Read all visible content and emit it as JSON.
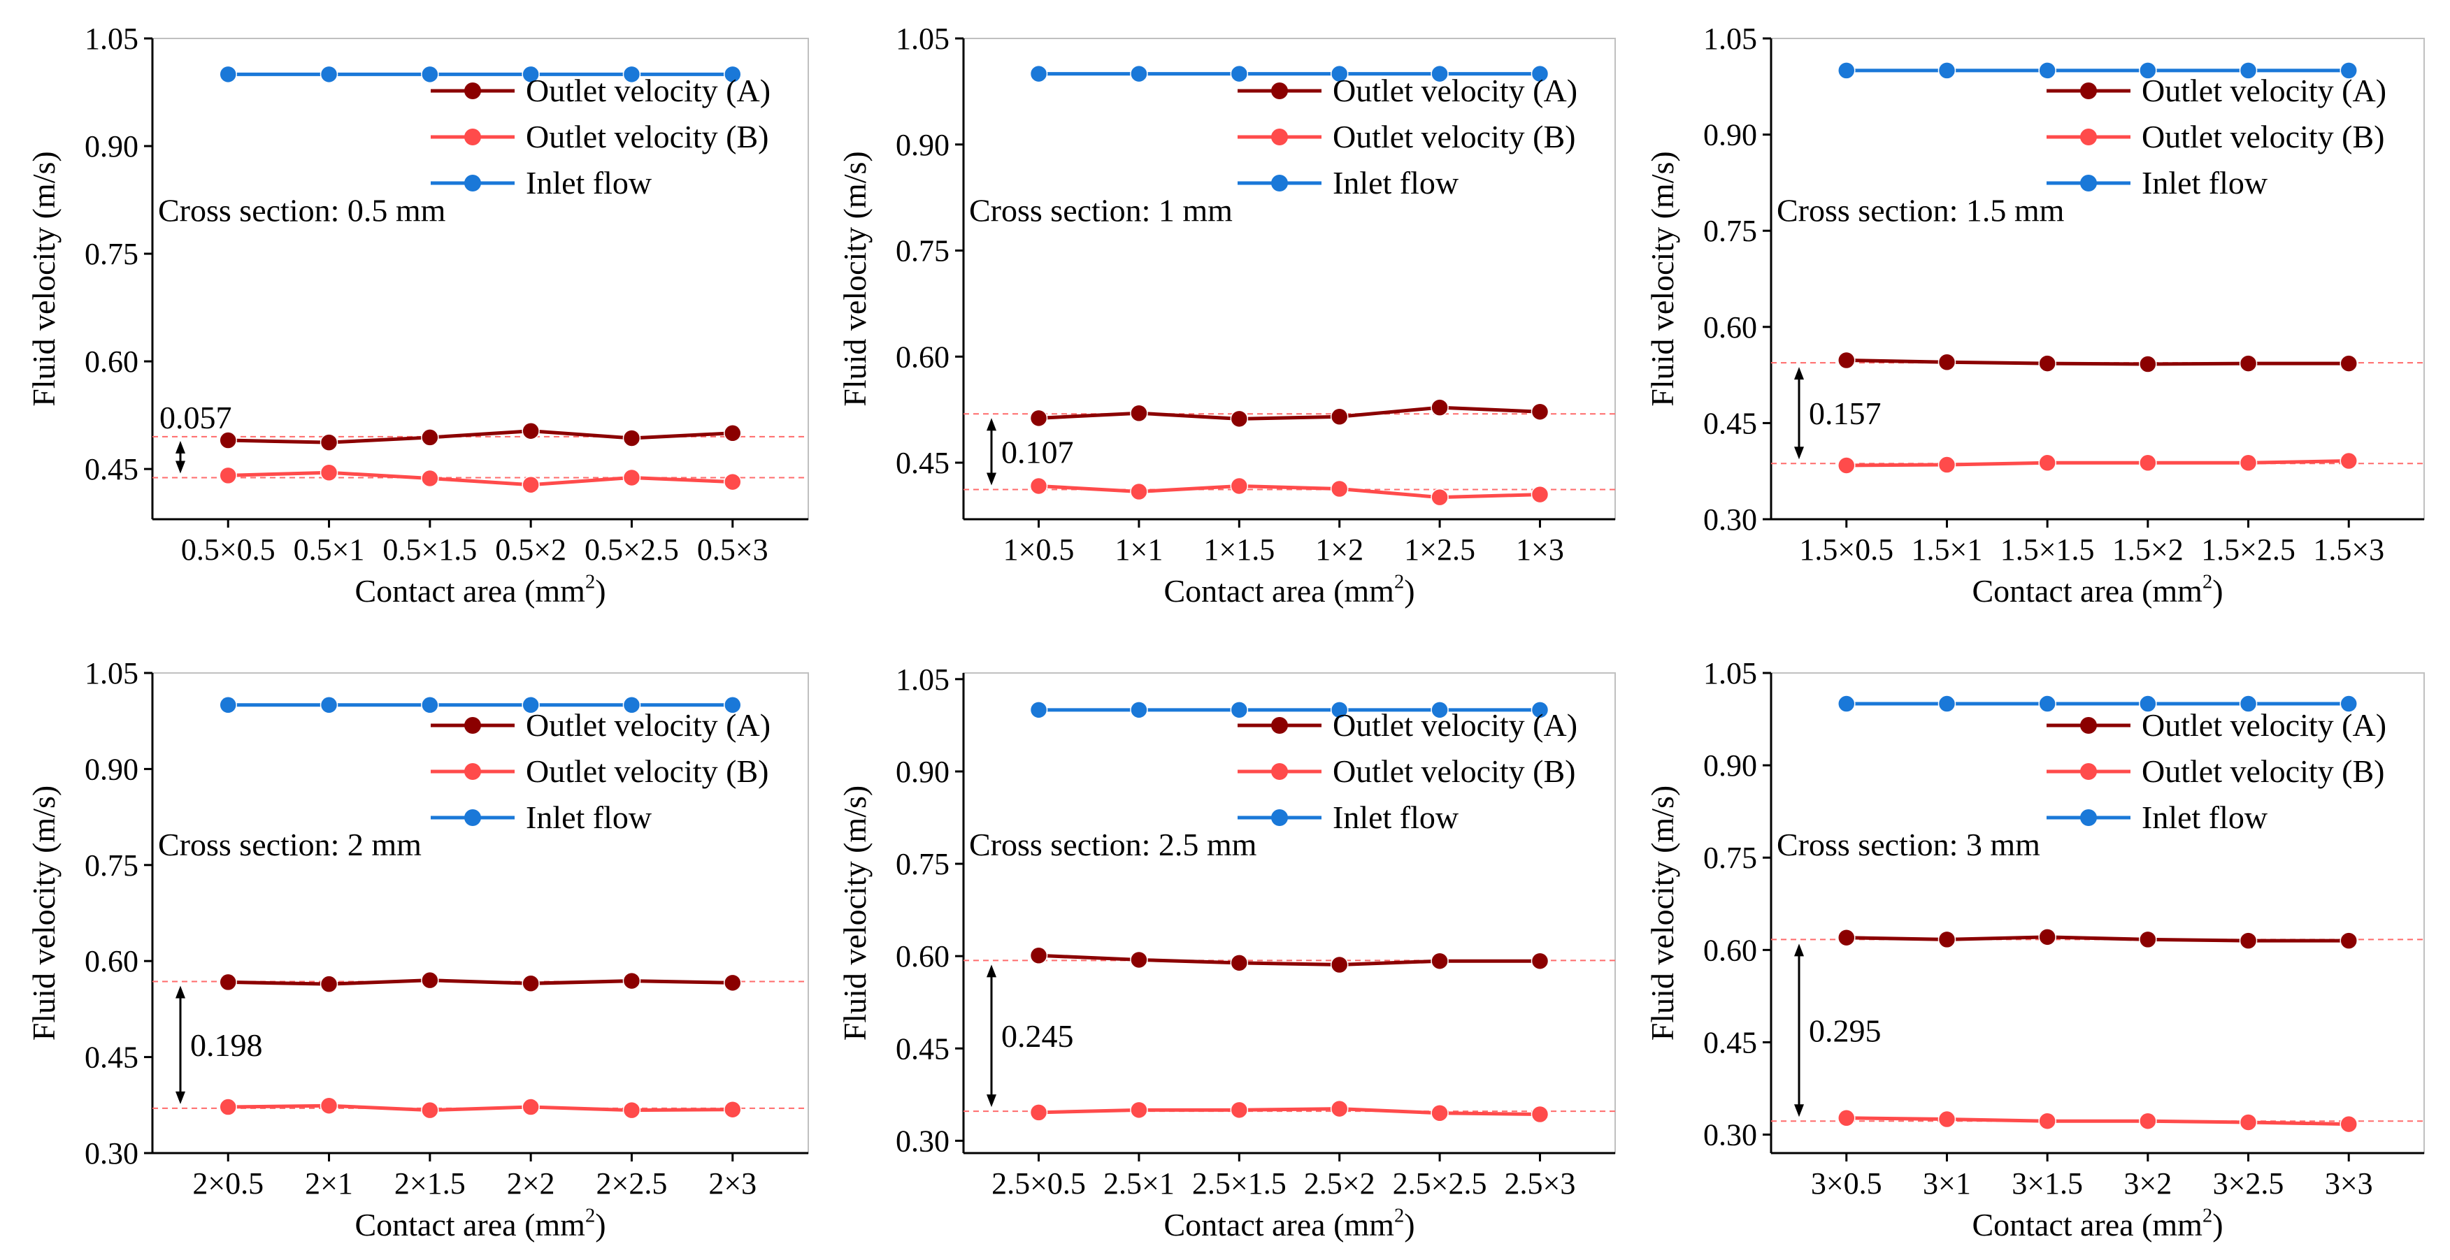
{
  "figure": {
    "colors": {
      "outlet_a": "#8b0000",
      "outlet_b": "#ff4b4b",
      "inlet": "#1a78d8",
      "reference_line": "#ff6b6b",
      "axis": "#000000",
      "frame": "#c0c0c0"
    }
  },
  "chart_data": [
    {
      "type": "line",
      "annotation": "Cross section: 0.5 mm",
      "xlabel": "Contact area (mm²)",
      "ylabel": "Fluid velocity (m/s)",
      "ylim": [
        0.38,
        1.05
      ],
      "yticks": [
        "0.45",
        "0.60",
        "0.75",
        "0.90",
        "1.05"
      ],
      "categories": [
        "0.5×0.5",
        "0.5×1",
        "0.5×1.5",
        "0.5×2",
        "0.5×2.5",
        "0.5×3"
      ],
      "series": [
        {
          "name": "Outlet velocity (A)",
          "values": [
            0.49,
            0.487,
            0.494,
            0.503,
            0.493,
            0.5
          ]
        },
        {
          "name": "Outlet velocity (B)",
          "values": [
            0.441,
            0.445,
            0.437,
            0.428,
            0.438,
            0.432
          ]
        },
        {
          "name": "Inlet flow",
          "values": [
            1.0,
            1.0,
            1.0,
            1.0,
            1.0,
            1.0
          ]
        }
      ],
      "gap_label": "0.057",
      "gap_range": [
        0.438,
        0.495
      ],
      "legend": "top-right",
      "grid": false
    },
    {
      "type": "line",
      "annotation": "Cross section: 1 mm",
      "xlabel": "Contact area (mm²)",
      "ylabel": "Fluid velocity (m/s)",
      "ylim": [
        0.37,
        1.05
      ],
      "yticks": [
        "0.45",
        "0.60",
        "0.75",
        "0.90",
        "1.05"
      ],
      "categories": [
        "1×0.5",
        "1×1",
        "1×1.5",
        "1×2",
        "1×2.5",
        "1×3"
      ],
      "series": [
        {
          "name": "Outlet velocity (A)",
          "values": [
            0.513,
            0.52,
            0.512,
            0.515,
            0.528,
            0.522
          ]
        },
        {
          "name": "Outlet velocity (B)",
          "values": [
            0.417,
            0.409,
            0.417,
            0.413,
            0.401,
            0.405
          ]
        },
        {
          "name": "Inlet flow",
          "values": [
            1.0,
            1.0,
            1.0,
            1.0,
            1.0,
            1.0
          ]
        }
      ],
      "gap_label": "0.107",
      "gap_range": [
        0.412,
        0.519
      ],
      "legend": "top-right",
      "grid": false
    },
    {
      "type": "line",
      "annotation": "Cross section: 1.5 mm",
      "xlabel": "Contact area (mm²)",
      "ylabel": "Fluid velocity (m/s)",
      "ylim": [
        0.3,
        1.05
      ],
      "yticks": [
        "0.30",
        "0.45",
        "0.60",
        "0.75",
        "0.90",
        "1.05"
      ],
      "categories": [
        "1.5×0.5",
        "1.5×1",
        "1.5×1.5",
        "1.5×2",
        "1.5×2.5",
        "1.5×3"
      ],
      "series": [
        {
          "name": "Outlet velocity (A)",
          "values": [
            0.548,
            0.545,
            0.543,
            0.542,
            0.543,
            0.543
          ]
        },
        {
          "name": "Outlet velocity (B)",
          "values": [
            0.384,
            0.385,
            0.388,
            0.388,
            0.388,
            0.391
          ]
        },
        {
          "name": "Inlet flow",
          "values": [
            1.0,
            1.0,
            1.0,
            1.0,
            1.0,
            1.0
          ]
        }
      ],
      "gap_label": "0.157",
      "gap_range": [
        0.387,
        0.544
      ],
      "legend": "top-right",
      "grid": false
    },
    {
      "type": "line",
      "annotation": "Cross section: 2 mm",
      "xlabel": "Contact area (mm²)",
      "ylabel": "Fluid velocity (m/s)",
      "ylim": [
        0.3,
        1.05
      ],
      "yticks": [
        "0.30",
        "0.45",
        "0.60",
        "0.75",
        "0.90",
        "1.05"
      ],
      "categories": [
        "2×0.5",
        "2×1",
        "2×1.5",
        "2×2",
        "2×2.5",
        "2×3"
      ],
      "series": [
        {
          "name": "Outlet velocity (A)",
          "values": [
            0.567,
            0.564,
            0.57,
            0.565,
            0.569,
            0.566
          ]
        },
        {
          "name": "Outlet velocity (B)",
          "values": [
            0.372,
            0.374,
            0.367,
            0.372,
            0.367,
            0.368
          ]
        },
        {
          "name": "Inlet flow",
          "values": [
            1.0,
            1.0,
            1.0,
            1.0,
            1.0,
            1.0
          ]
        }
      ],
      "gap_label": "0.198",
      "gap_range": [
        0.37,
        0.568
      ],
      "legend": "top-right",
      "grid": false
    },
    {
      "type": "line",
      "annotation": "Cross section: 2.5 mm",
      "xlabel": "Contact area (mm²)",
      "ylabel": "Fluid velocity (m/s)",
      "ylim": [
        0.28,
        1.06
      ],
      "yticks": [
        "0.30",
        "0.45",
        "0.60",
        "0.75",
        "0.90",
        "1.05"
      ],
      "categories": [
        "2.5×0.5",
        "2.5×1",
        "2.5×1.5",
        "2.5×2",
        "2.5×2.5",
        "2.5×3"
      ],
      "series": [
        {
          "name": "Outlet velocity (A)",
          "values": [
            0.601,
            0.594,
            0.589,
            0.586,
            0.592,
            0.592
          ]
        },
        {
          "name": "Outlet velocity (B)",
          "values": [
            0.346,
            0.35,
            0.35,
            0.352,
            0.345,
            0.343
          ]
        },
        {
          "name": "Inlet flow",
          "values": [
            1.0,
            1.0,
            1.0,
            1.0,
            1.0,
            1.0
          ]
        }
      ],
      "gap_label": "0.245",
      "gap_range": [
        0.348,
        0.593
      ],
      "legend": "top-right",
      "grid": false
    },
    {
      "type": "line",
      "annotation": "Cross section: 3 mm",
      "xlabel": "Contact area (mm²)",
      "ylabel": "Fluid velocity (m/s)",
      "ylim": [
        0.27,
        1.05
      ],
      "yticks": [
        "0.30",
        "0.45",
        "0.60",
        "0.75",
        "0.90",
        "1.05"
      ],
      "categories": [
        "3×0.5",
        "3×1",
        "3×1.5",
        "3×2",
        "3×2.5",
        "3×3"
      ],
      "series": [
        {
          "name": "Outlet velocity (A)",
          "values": [
            0.62,
            0.617,
            0.621,
            0.617,
            0.615,
            0.615
          ]
        },
        {
          "name": "Outlet velocity (B)",
          "values": [
            0.327,
            0.325,
            0.322,
            0.322,
            0.32,
            0.317
          ]
        },
        {
          "name": "Inlet flow",
          "values": [
            1.0,
            1.0,
            1.0,
            1.0,
            1.0,
            1.0
          ]
        }
      ],
      "gap_label": "0.295",
      "gap_range": [
        0.322,
        0.617
      ],
      "legend": "top-right",
      "grid": false
    }
  ]
}
